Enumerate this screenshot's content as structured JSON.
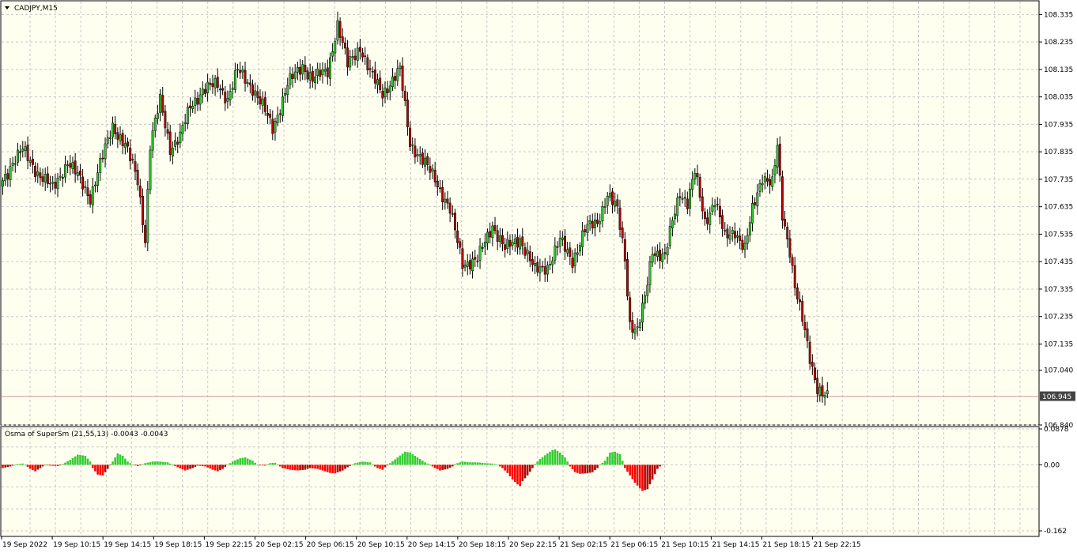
{
  "window": {
    "symbol_title": "CADJPY,M15",
    "indicator_title": "Osma of SuperSm (21,55,13) -0.0043 -0.0043"
  },
  "colors": {
    "background": "#fffff0",
    "grid": "#c8c8c8",
    "bull_candle": "#2ccc2c",
    "bear_candle": "#b80000",
    "wick": "#000000",
    "osma_positive": "#32cd32",
    "osma_negative": "#ff0000",
    "osma_negative_dark": "#b40000",
    "bid_line": "#d4a0a0",
    "price_tag_bg": "#444444",
    "price_tag_text": "#ffffff"
  },
  "chart_data": [
    {
      "type": "candlestick",
      "title": "CADJPY,M15",
      "ylim": [
        106.84,
        108.385
      ],
      "y_ticks": [
        "108.335",
        "108.235",
        "108.135",
        "108.035",
        "107.935",
        "107.835",
        "107.735",
        "107.635",
        "107.535",
        "107.435",
        "107.335",
        "107.235",
        "107.135",
        "107.040",
        "106.840"
      ],
      "current_price": "106.945",
      "x_tick_labels": [
        "19 Sep 2022",
        "19 Sep 10:15",
        "19 Sep 14:15",
        "19 Sep 18:15",
        "19 Sep 22:15",
        "20 Sep 02:15",
        "20 Sep 06:15",
        "20 Sep 10:15",
        "20 Sep 14:15",
        "20 Sep 18:15",
        "20 Sep 22:15",
        "21 Sep 02:15",
        "21 Sep 06:15",
        "21 Sep 10:15",
        "21 Sep 14:15",
        "21 Sep 18:15",
        "21 Sep 22:15"
      ],
      "close_path": [
        [
          0,
          107.73
        ],
        [
          4,
          107.8
        ],
        [
          8,
          107.84
        ],
        [
          14,
          107.76
        ],
        [
          20,
          107.7
        ],
        [
          26,
          107.8
        ],
        [
          31,
          107.73
        ],
        [
          35,
          107.67
        ],
        [
          38,
          107.76
        ],
        [
          44,
          107.93
        ],
        [
          49,
          107.86
        ],
        [
          54,
          107.73
        ],
        [
          57,
          107.52
        ],
        [
          59,
          107.86
        ],
        [
          63,
          108.02
        ],
        [
          67,
          107.85
        ],
        [
          71,
          107.89
        ],
        [
          75,
          108.0
        ],
        [
          80,
          108.06
        ],
        [
          86,
          108.08
        ],
        [
          90,
          108.03
        ],
        [
          94,
          108.13
        ],
        [
          100,
          108.07
        ],
        [
          104,
          108.0
        ],
        [
          108,
          107.92
        ],
        [
          114,
          108.08
        ],
        [
          120,
          108.15
        ],
        [
          124,
          108.1
        ],
        [
          130,
          108.13
        ],
        [
          134,
          108.3
        ],
        [
          138,
          108.15
        ],
        [
          143,
          108.22
        ],
        [
          147,
          108.12
        ],
        [
          152,
          108.05
        ],
        [
          159,
          108.13
        ],
        [
          163,
          107.87
        ],
        [
          168,
          107.8
        ],
        [
          173,
          107.74
        ],
        [
          179,
          107.62
        ],
        [
          184,
          107.43
        ],
        [
          190,
          107.44
        ],
        [
          196,
          107.57
        ],
        [
          201,
          107.48
        ],
        [
          207,
          107.52
        ],
        [
          213,
          107.4
        ],
        [
          218,
          107.42
        ],
        [
          223,
          107.51
        ],
        [
          228,
          107.44
        ],
        [
          233,
          107.55
        ],
        [
          238,
          107.58
        ],
        [
          242,
          107.68
        ],
        [
          246,
          107.62
        ],
        [
          249,
          107.45
        ],
        [
          251,
          107.21
        ],
        [
          254,
          107.18
        ],
        [
          257,
          107.3
        ],
        [
          260,
          107.48
        ],
        [
          265,
          107.45
        ],
        [
          268,
          107.58
        ],
        [
          271,
          107.69
        ],
        [
          274,
          107.65
        ],
        [
          277,
          107.76
        ],
        [
          281,
          107.58
        ],
        [
          285,
          107.66
        ],
        [
          289,
          107.52
        ],
        [
          293,
          107.55
        ],
        [
          297,
          107.48
        ],
        [
          300,
          107.62
        ],
        [
          304,
          107.75
        ],
        [
          308,
          107.72
        ],
        [
          310,
          107.85
        ],
        [
          312,
          107.6
        ],
        [
          315,
          107.48
        ],
        [
          317,
          107.35
        ],
        [
          320,
          107.22
        ],
        [
          323,
          107.08
        ],
        [
          326,
          106.98
        ],
        [
          330,
          106.94
        ]
      ]
    },
    {
      "type": "histogram",
      "title": "Osma of SuperSm (21,55,13) -0.0043 -0.0043",
      "ylim": [
        -0.162,
        0.0878
      ],
      "y_ticks": [
        "0.0878",
        "0.00",
        "-0.162"
      ],
      "zero_line": 0.0,
      "last_value": -0.0043,
      "value_path": [
        [
          0,
          -0.008
        ],
        [
          3,
          -0.004
        ],
        [
          6,
          0.002
        ],
        [
          8,
          0.003
        ],
        [
          9,
          0.0
        ],
        [
          11,
          -0.01
        ],
        [
          13,
          -0.016
        ],
        [
          15,
          -0.008
        ],
        [
          17,
          0.0
        ],
        [
          19,
          -0.002
        ],
        [
          22,
          -0.003
        ],
        [
          24,
          0.002
        ],
        [
          27,
          0.012
        ],
        [
          30,
          0.025
        ],
        [
          33,
          0.022
        ],
        [
          35,
          0.008
        ],
        [
          36,
          -0.008
        ],
        [
          38,
          -0.024
        ],
        [
          40,
          -0.026
        ],
        [
          42,
          -0.01
        ],
        [
          44,
          0.008
        ],
        [
          46,
          0.028
        ],
        [
          48,
          0.022
        ],
        [
          50,
          0.008
        ],
        [
          52,
          0.0
        ],
        [
          54,
          -0.003
        ],
        [
          57,
          0.004
        ],
        [
          60,
          0.008
        ],
        [
          63,
          0.008
        ],
        [
          66,
          0.006
        ],
        [
          68,
          0.0
        ],
        [
          70,
          -0.006
        ],
        [
          73,
          -0.014
        ],
        [
          76,
          -0.008
        ],
        [
          78,
          -0.002
        ],
        [
          81,
          -0.004
        ],
        [
          84,
          -0.012
        ],
        [
          86,
          -0.016
        ],
        [
          88,
          -0.01
        ],
        [
          90,
          0.0
        ],
        [
          92,
          0.008
        ],
        [
          95,
          0.016
        ],
        [
          97,
          0.018
        ],
        [
          100,
          0.01
        ],
        [
          102,
          0.0
        ],
        [
          105,
          -0.002
        ],
        [
          107,
          0.004
        ],
        [
          109,
          0.005
        ],
        [
          110,
          0.0
        ],
        [
          112,
          -0.008
        ],
        [
          115,
          -0.012
        ],
        [
          118,
          -0.014
        ],
        [
          121,
          -0.012
        ],
        [
          123,
          -0.008
        ],
        [
          126,
          -0.01
        ],
        [
          129,
          -0.016
        ],
        [
          131,
          -0.02
        ],
        [
          133,
          -0.021
        ],
        [
          136,
          -0.014
        ],
        [
          138,
          -0.006
        ],
        [
          141,
          0.004
        ],
        [
          144,
          0.008
        ],
        [
          147,
          0.006
        ],
        [
          148,
          0.0
        ],
        [
          150,
          -0.008
        ],
        [
          152,
          -0.012
        ],
        [
          153,
          -0.006
        ],
        [
          155,
          0.004
        ],
        [
          158,
          0.018
        ],
        [
          161,
          0.032
        ],
        [
          163,
          0.03
        ],
        [
          166,
          0.018
        ],
        [
          169,
          0.006
        ],
        [
          171,
          0.0
        ],
        [
          173,
          -0.008
        ],
        [
          175,
          -0.014
        ],
        [
          178,
          -0.01
        ],
        [
          180,
          -0.004
        ],
        [
          181,
          0.002
        ],
        [
          184,
          0.008
        ],
        [
          187,
          0.006
        ],
        [
          190,
          0.006
        ],
        [
          193,
          0.004
        ],
        [
          196,
          0.003
        ],
        [
          198,
          0.0
        ],
        [
          200,
          -0.008
        ],
        [
          202,
          -0.02
        ],
        [
          204,
          -0.036
        ],
        [
          206,
          -0.048
        ],
        [
          207,
          -0.052
        ],
        [
          208,
          -0.04
        ],
        [
          210,
          -0.026
        ],
        [
          212,
          -0.008
        ],
        [
          213,
          0.002
        ],
        [
          215,
          0.014
        ],
        [
          218,
          0.028
        ],
        [
          220,
          0.036
        ],
        [
          221,
          0.038
        ],
        [
          223,
          0.03
        ],
        [
          225,
          0.018
        ],
        [
          226,
          0.008
        ],
        [
          227,
          -0.004
        ],
        [
          229,
          -0.018
        ],
        [
          231,
          -0.022
        ],
        [
          234,
          -0.021
        ],
        [
          236,
          -0.018
        ],
        [
          238,
          -0.008
        ],
        [
          239,
          0.0
        ],
        [
          241,
          0.01
        ],
        [
          243,
          0.03
        ],
        [
          245,
          0.032
        ],
        [
          247,
          0.026
        ],
        [
          248,
          0.01
        ],
        [
          249,
          -0.008
        ],
        [
          251,
          -0.026
        ],
        [
          253,
          -0.044
        ],
        [
          255,
          -0.058
        ],
        [
          256,
          -0.064
        ],
        [
          258,
          -0.06
        ],
        [
          260,
          -0.036
        ],
        [
          262,
          -0.01
        ],
        [
          263,
          -0.004
        ]
      ]
    }
  ]
}
